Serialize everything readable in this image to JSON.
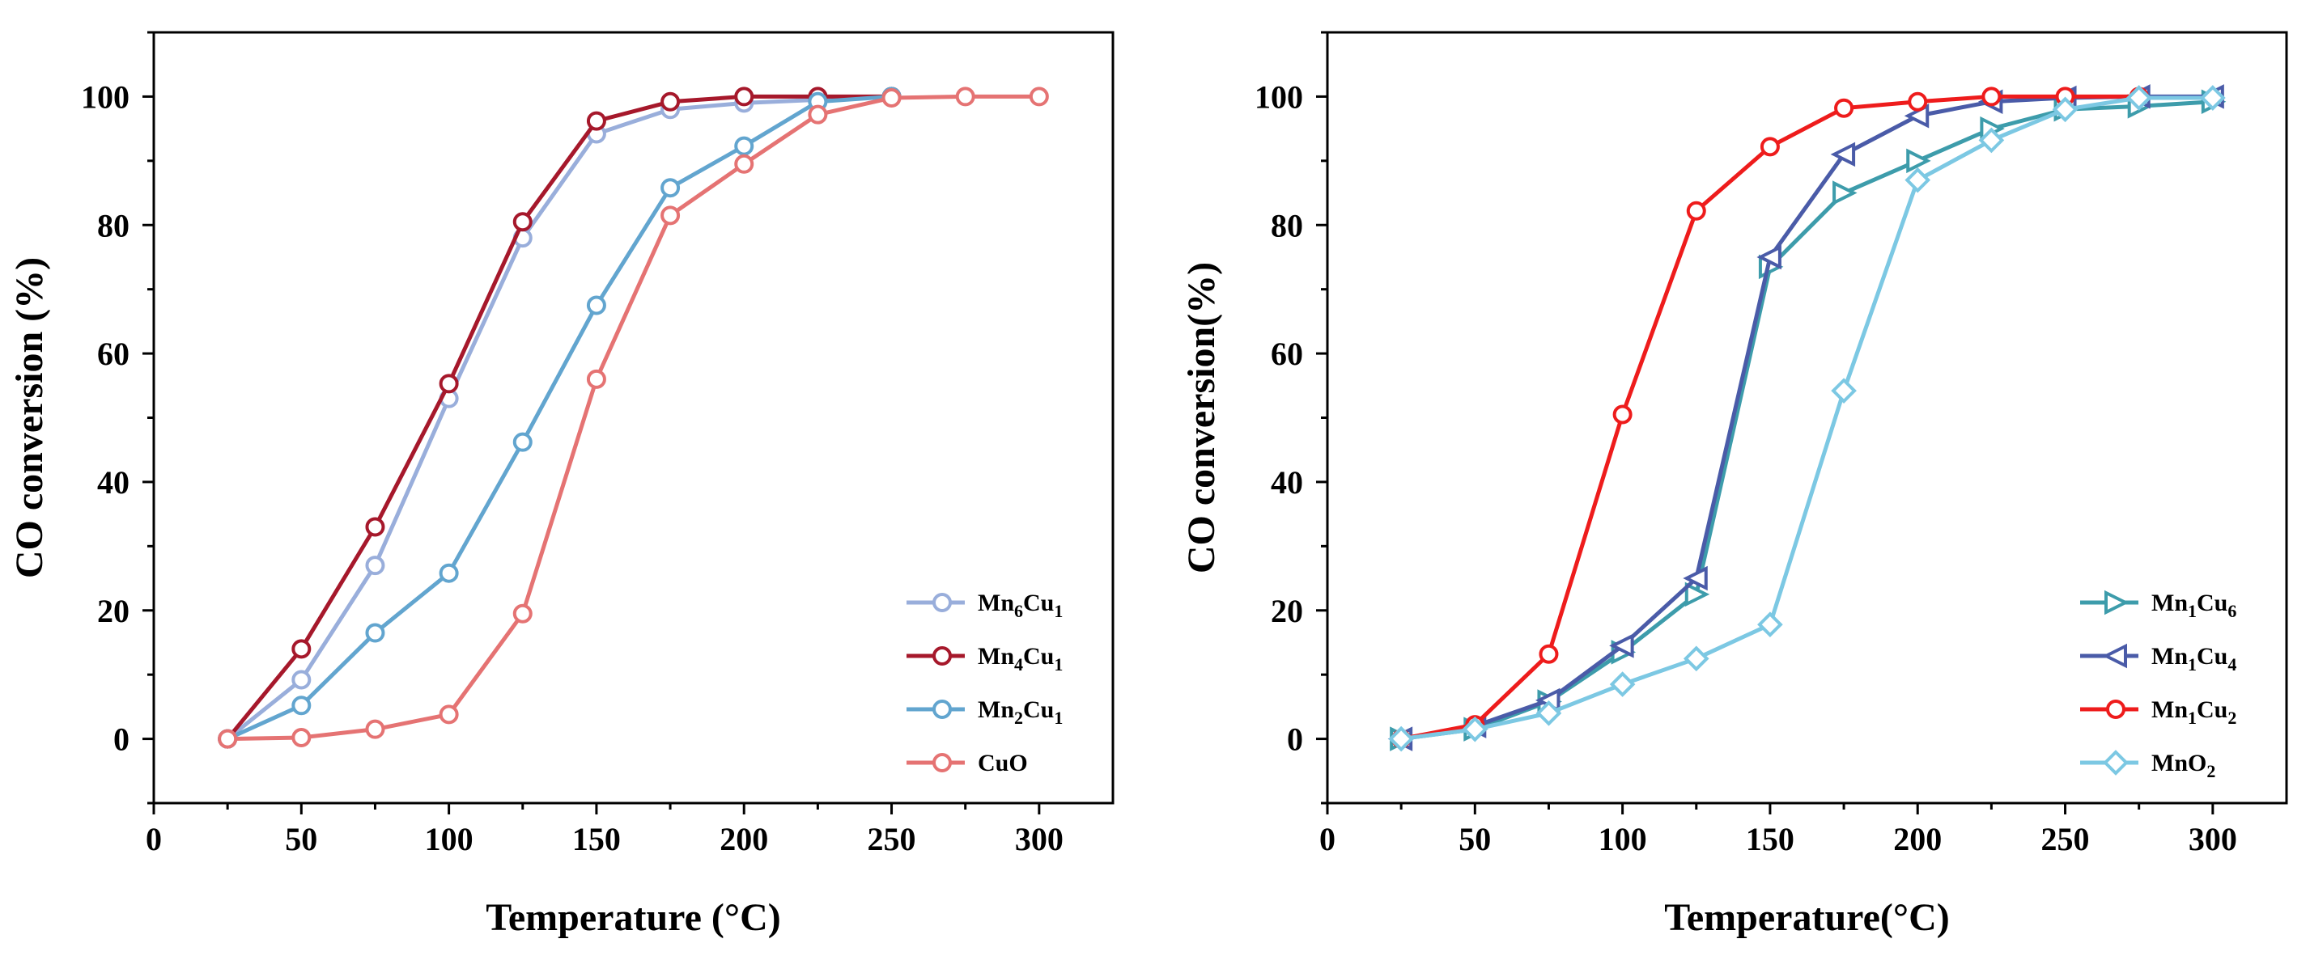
{
  "chart_data": [
    {
      "type": "line",
      "title": "",
      "xlabel": "Temperature (°C)",
      "ylabel": "CO conversion (%)",
      "xlim": [
        0,
        325
      ],
      "ylim": [
        -10,
        110
      ],
      "xticks": [
        "0",
        "50",
        "100",
        "150",
        "200",
        "250",
        "300"
      ],
      "yticks": [
        "0",
        "20",
        "40",
        "60",
        "80",
        "100"
      ],
      "legend_position": "bottom-right",
      "series": [
        {
          "name": "Mn6Cu1",
          "base": "Mn",
          "sub1": "6",
          "mid": "Cu",
          "sub2": "1",
          "color": "#99aedb",
          "marker": "circle",
          "x": [
            25,
            50,
            75,
            100,
            125,
            150,
            175,
            200,
            225,
            250
          ],
          "y": [
            0,
            9.2,
            27,
            53,
            78,
            94.2,
            98,
            99,
            99.5,
            100
          ]
        },
        {
          "name": "Mn4Cu1",
          "base": "Mn",
          "sub1": "4",
          "mid": "Cu",
          "sub2": "1",
          "color": "#a6182b",
          "marker": "circle",
          "x": [
            25,
            50,
            75,
            100,
            125,
            150,
            175,
            200,
            225,
            250
          ],
          "y": [
            0,
            14,
            33,
            55.3,
            80.5,
            96.2,
            99.2,
            100,
            100,
            100
          ]
        },
        {
          "name": "Mn2Cu1",
          "base": "Mn",
          "sub1": "2",
          "mid": "Cu",
          "sub2": "1",
          "color": "#62a5cf",
          "marker": "circle",
          "x": [
            25,
            50,
            75,
            100,
            125,
            150,
            175,
            200,
            225,
            250
          ],
          "y": [
            0,
            5.2,
            16.5,
            25.8,
            46.2,
            67.5,
            85.8,
            92.3,
            99.2,
            100
          ]
        },
        {
          "name": "CuO",
          "base": "CuO",
          "sub1": "",
          "mid": "",
          "sub2": "",
          "color": "#e57373",
          "marker": "circle",
          "x": [
            25,
            50,
            75,
            100,
            125,
            150,
            175,
            200,
            225,
            250,
            275,
            300
          ],
          "y": [
            0,
            0.2,
            1.5,
            3.8,
            19.5,
            56,
            81.5,
            89.5,
            97.2,
            99.8,
            100,
            100
          ]
        }
      ]
    },
    {
      "type": "line",
      "title": "",
      "xlabel": "Temperature(°C)",
      "ylabel": "CO conversion(%)",
      "xlim": [
        0,
        325
      ],
      "ylim": [
        -10,
        110
      ],
      "xticks": [
        "0",
        "50",
        "100",
        "150",
        "200",
        "250",
        "300"
      ],
      "yticks": [
        "0",
        "20",
        "40",
        "60",
        "80",
        "100"
      ],
      "legend_position": "bottom-right",
      "series": [
        {
          "name": "Mn1Cu6",
          "base": "Mn",
          "sub1": "1",
          "mid": "Cu",
          "sub2": "6",
          "color": "#3d9cab",
          "marker": "triangle-right",
          "x": [
            25,
            50,
            75,
            100,
            125,
            150,
            175,
            200,
            225,
            250,
            275,
            300
          ],
          "y": [
            0,
            1.5,
            5.8,
            13.5,
            22.5,
            73.5,
            85,
            90,
            95,
            98,
            98.5,
            99.2
          ]
        },
        {
          "name": "Mn1Cu4",
          "base": "Mn",
          "sub1": "1",
          "mid": "Cu",
          "sub2": "4",
          "color": "#4a5ba8",
          "marker": "triangle-left",
          "x": [
            25,
            50,
            75,
            100,
            125,
            150,
            175,
            200,
            225,
            250,
            275,
            300
          ],
          "y": [
            0,
            2,
            6,
            14.5,
            25,
            75,
            91,
            97,
            99.2,
            99.8,
            100,
            100
          ]
        },
        {
          "name": "Mn1Cu2",
          "base": "Mn",
          "sub1": "1",
          "mid": "Cu",
          "sub2": "2",
          "color": "#ee1c1c",
          "marker": "circle",
          "x": [
            25,
            50,
            75,
            100,
            125,
            150,
            175,
            200,
            225,
            250,
            275
          ],
          "y": [
            0,
            2.2,
            13.2,
            50.5,
            82.2,
            92.2,
            98.2,
            99.2,
            100,
            100,
            100
          ]
        },
        {
          "name": "MnO2",
          "base": "MnO",
          "sub1": "2",
          "mid": "",
          "sub2": "",
          "color": "#7cc8e3",
          "marker": "diamond",
          "x": [
            25,
            50,
            75,
            100,
            125,
            150,
            175,
            200,
            225,
            250,
            275,
            300
          ],
          "y": [
            0,
            1.5,
            4,
            8.5,
            12.5,
            17.8,
            54.2,
            87,
            93.2,
            98,
            99.8,
            99.8
          ]
        }
      ]
    }
  ]
}
